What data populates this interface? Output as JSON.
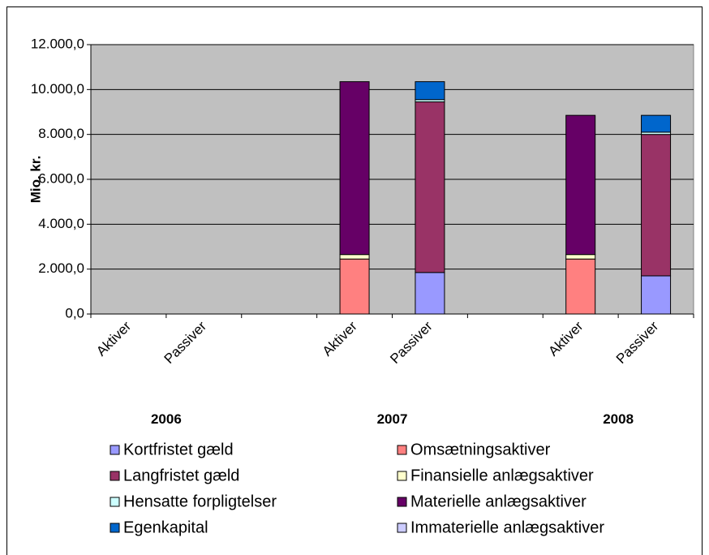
{
  "chart_data": {
    "type": "stacked-bar",
    "y_label": "Mio. kr.",
    "categories": [
      "Aktiver",
      "Passiver",
      null,
      "Aktiver",
      "Passiver",
      null,
      "Aktiver",
      "Passiver"
    ],
    "groups": [
      "2006",
      "2007",
      "2008"
    ],
    "ylim": [
      0,
      12000
    ],
    "yticks": [
      {
        "value": 0,
        "label": "0,0"
      },
      {
        "value": 2000,
        "label": "2.000,0"
      },
      {
        "value": 4000,
        "label": "4.000,0"
      },
      {
        "value": 6000,
        "label": "6.000,0"
      },
      {
        "value": 8000,
        "label": "8.000,0"
      },
      {
        "value": 10000,
        "label": "10.000,0"
      },
      {
        "value": 12000,
        "label": "12.000,0"
      }
    ],
    "grid": true,
    "series": [
      {
        "name": "Kortfristet gæld",
        "color": "#9999ff",
        "values": [
          null,
          null,
          null,
          null,
          1850,
          null,
          null,
          1700
        ]
      },
      {
        "name": "Langfristet gæld",
        "color": "#993366",
        "values": [
          null,
          null,
          null,
          null,
          7600,
          null,
          null,
          6300
        ]
      },
      {
        "name": "Hensatte forpligtelser",
        "color": "#ccffff",
        "values": [
          null,
          null,
          null,
          null,
          100,
          null,
          null,
          100
        ]
      },
      {
        "name": "Egenkapital",
        "color": "#0066cc",
        "values": [
          null,
          null,
          null,
          null,
          800,
          null,
          null,
          750
        ]
      },
      {
        "name": "Omsætningsaktiver",
        "color": "#ff8080",
        "values": [
          null,
          null,
          null,
          2450,
          null,
          null,
          2450,
          null
        ]
      },
      {
        "name": "Finansielle anlægsaktiver",
        "color": "#ffffcc",
        "values": [
          null,
          null,
          null,
          200,
          null,
          null,
          200,
          null
        ]
      },
      {
        "name": "Materielle anlægsaktiver",
        "color": "#660066",
        "values": [
          null,
          null,
          null,
          7700,
          null,
          null,
          6200,
          null
        ]
      },
      {
        "name": "Immaterielle anlægsaktiver",
        "color": "#ccccff",
        "values": [
          null,
          null,
          null,
          0,
          null,
          null,
          0,
          null
        ]
      }
    ]
  }
}
